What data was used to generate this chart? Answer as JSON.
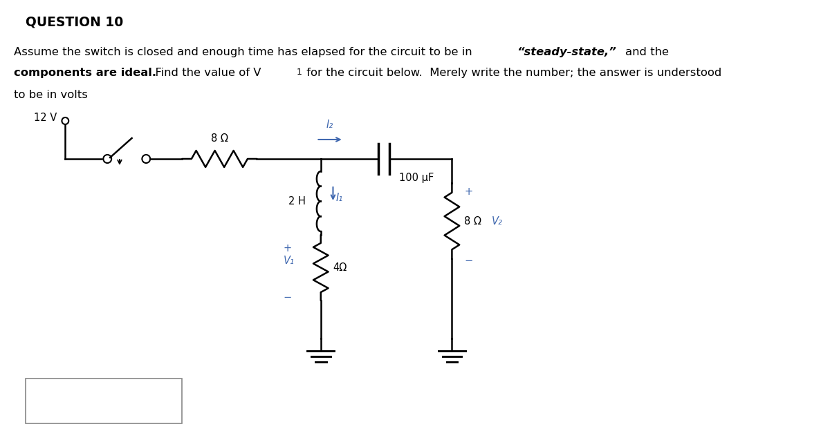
{
  "bg_color": "#ffffff",
  "text_color": "#000000",
  "circuit_color": "#000000",
  "blue_color": "#4169B0",
  "title": "QUESTION 10",
  "line1a": "Assume the switch is closed and enough time has elapsed for the circuit to be in ",
  "line1b": "“steady-state,”",
  "line1c": "and the",
  "line2a": "components are ideal.",
  "line2b": "  Find the value of V",
  "line2c": " for the circuit below.  Merely write the number; the answer is understood",
  "line3": "to be in volts",
  "lbl_12V": "12 V",
  "lbl_8ohm_top": "8 Ω",
  "lbl_2H": "2 H",
  "lbl_100uF": "100 μF",
  "lbl_4ohm": "4Ω",
  "lbl_8ohm_right": "8 Ω",
  "lbl_V1": "V₁",
  "lbl_V2": "V₂",
  "lbl_I1": "I₁",
  "lbl_I2": "I₂"
}
